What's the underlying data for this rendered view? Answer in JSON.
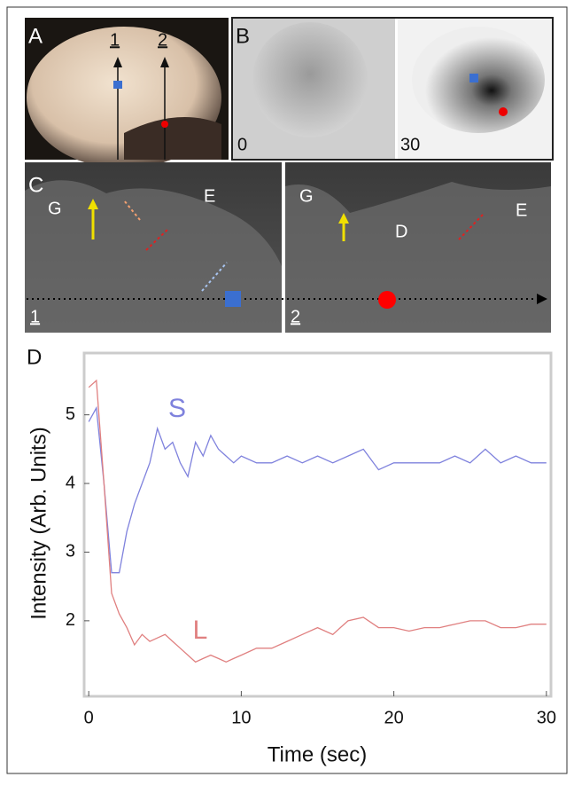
{
  "figure": {
    "panels": [
      {
        "label": "A",
        "markers": [
          "1",
          "2"
        ]
      },
      {
        "label": "B",
        "frames": [
          "0",
          "30"
        ]
      },
      {
        "label": "C",
        "images": [
          {
            "scan": "1",
            "regions": [
              "G",
              "E"
            ]
          },
          {
            "scan": "2",
            "regions": [
              "G",
              "D",
              "E"
            ]
          }
        ]
      },
      {
        "label": "D"
      }
    ]
  },
  "chart_data": {
    "type": "line",
    "xlabel": "Time (sec)",
    "ylabel": "Intensity (Arb. Units)",
    "x": [
      0,
      0.5,
      1,
      1.5,
      2,
      2.5,
      3,
      3.5,
      4,
      4.5,
      5,
      5.5,
      6,
      6.5,
      7,
      7.5,
      8,
      8.5,
      9,
      9.5,
      10,
      11,
      12,
      13,
      14,
      15,
      16,
      17,
      18,
      19,
      20,
      21,
      22,
      23,
      24,
      25,
      26,
      27,
      28,
      29,
      30
    ],
    "series": [
      {
        "name": "S",
        "color": "#7f82dd",
        "values": [
          4.9,
          5.1,
          4.0,
          2.7,
          2.7,
          3.3,
          3.7,
          4.0,
          4.3,
          4.8,
          4.5,
          4.6,
          4.3,
          4.1,
          4.6,
          4.4,
          4.7,
          4.5,
          4.4,
          4.3,
          4.4,
          4.3,
          4.3,
          4.4,
          4.3,
          4.4,
          4.3,
          4.4,
          4.5,
          4.2,
          4.3,
          4.3,
          4.3,
          4.3,
          4.4,
          4.3,
          4.5,
          4.3,
          4.4,
          4.3,
          4.3
        ]
      },
      {
        "name": "L",
        "color": "#e08080",
        "values": [
          5.4,
          5.5,
          4.0,
          2.4,
          2.1,
          1.9,
          1.65,
          1.8,
          1.7,
          1.75,
          1.8,
          1.7,
          1.6,
          1.5,
          1.4,
          1.45,
          1.5,
          1.45,
          1.4,
          1.45,
          1.5,
          1.6,
          1.6,
          1.7,
          1.8,
          1.9,
          1.8,
          2.0,
          2.05,
          1.9,
          1.9,
          1.85,
          1.9,
          1.9,
          1.95,
          2.0,
          2.0,
          1.9,
          1.9,
          1.95,
          1.95
        ]
      }
    ],
    "xlim": [
      -0.3,
      30.3
    ],
    "ylim": [
      0.9,
      5.9
    ],
    "xticks": [
      0,
      10,
      20,
      30
    ],
    "yticks": [
      2,
      3,
      4,
      5
    ]
  }
}
